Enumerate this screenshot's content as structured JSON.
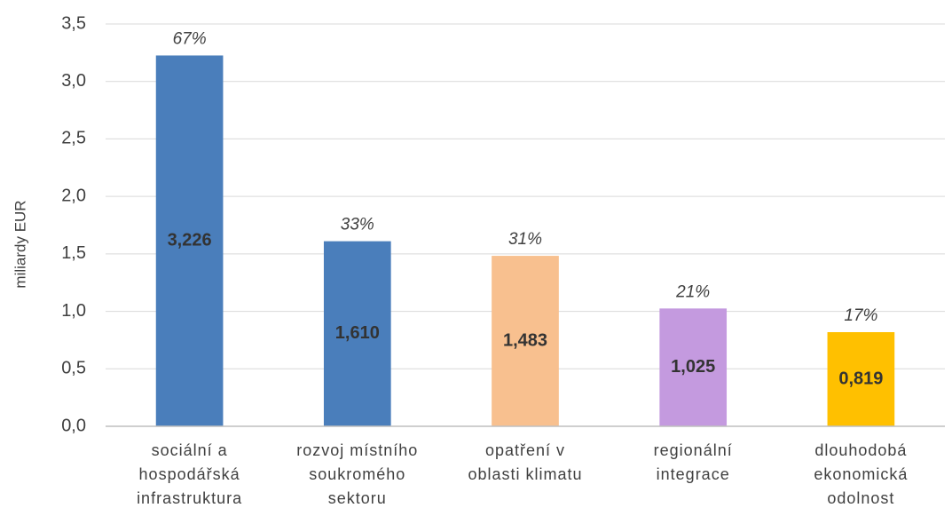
{
  "chart_data": {
    "type": "bar",
    "ylabel": "miliardy EUR",
    "categories": [
      "sociální a\nhospodářská\ninfrastruktura",
      "rozvoj místního\nsoukromého\nsektoru",
      "opatření v\noblasti klimatu",
      "regionální\nintegrace",
      "dlouhodobá\nekonomická\nodolnost"
    ],
    "values": [
      3.226,
      1.61,
      1.483,
      1.025,
      0.819
    ],
    "value_labels": [
      "3,226",
      "1,610",
      "1,483",
      "1,025",
      "0,819"
    ],
    "annotations": [
      "67%",
      "33%",
      "31%",
      "21%",
      "17%"
    ],
    "colors": [
      "#4a7ebb",
      "#4a7ebb",
      "#f8c08f",
      "#c49adf",
      "#ffc000"
    ],
    "ylim": [
      0,
      3.5
    ],
    "yticks": [
      {
        "value": 0,
        "label": "0,0"
      },
      {
        "value": 0.5,
        "label": "0,5"
      },
      {
        "value": 1,
        "label": "1,0"
      },
      {
        "value": 1.5,
        "label": "1,5"
      },
      {
        "value": 2,
        "label": "2,0"
      },
      {
        "value": 2.5,
        "label": "2,5"
      },
      {
        "value": 3,
        "label": "3,0"
      },
      {
        "value": 3.5,
        "label": "3,5"
      }
    ],
    "grid": true
  }
}
